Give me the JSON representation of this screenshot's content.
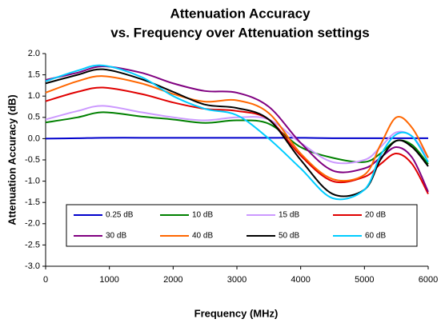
{
  "chart_data": {
    "type": "line",
    "title_lines": [
      "Attenuation Accuracy",
      "vs. Frequency over Attenuation settings"
    ],
    "x_label": "Frequency (MHz)",
    "y_label": "Attenuation Accuracy (dB)",
    "x": [
      0,
      500,
      900,
      1500,
      2000,
      2500,
      3000,
      3500,
      4000,
      4500,
      5000,
      5250,
      5500,
      5750,
      6000
    ],
    "series": [
      {
        "name": "0.25 dB",
        "color": "#0000cc",
        "values": [
          0.0,
          0.01,
          0.02,
          0.02,
          0.02,
          0.02,
          0.02,
          0.02,
          0.02,
          0.01,
          0.01,
          0.01,
          0.01,
          0.01,
          0.01
        ]
      },
      {
        "name": "10 dB",
        "color": "#008000",
        "values": [
          0.38,
          0.5,
          0.62,
          0.52,
          0.45,
          0.37,
          0.43,
          0.35,
          -0.2,
          -0.45,
          -0.55,
          -0.35,
          -0.05,
          -0.15,
          -0.6
        ]
      },
      {
        "name": "15 dB",
        "color": "#cc99ff",
        "values": [
          0.45,
          0.65,
          0.77,
          0.62,
          0.5,
          0.43,
          0.5,
          0.45,
          -0.1,
          -0.55,
          -0.5,
          -0.2,
          0.15,
          0.05,
          -0.45
        ]
      },
      {
        "name": "20 dB",
        "color": "#e00000",
        "values": [
          0.88,
          1.1,
          1.2,
          1.05,
          0.85,
          0.7,
          0.65,
          0.45,
          -0.4,
          -1.0,
          -0.9,
          -0.6,
          -0.35,
          -0.6,
          -1.3
        ]
      },
      {
        "name": "30 dB",
        "color": "#800080",
        "values": [
          1.38,
          1.55,
          1.7,
          1.55,
          1.3,
          1.12,
          1.08,
          0.75,
          -0.1,
          -0.75,
          -0.7,
          -0.45,
          -0.2,
          -0.45,
          -1.25
        ]
      },
      {
        "name": "40 dB",
        "color": "#ff6600",
        "values": [
          1.08,
          1.35,
          1.47,
          1.3,
          1.05,
          0.87,
          0.9,
          0.6,
          -0.35,
          -0.95,
          -0.85,
          -0.15,
          0.5,
          0.25,
          -0.45
        ]
      },
      {
        "name": "50 dB",
        "color": "#000000",
        "values": [
          1.3,
          1.5,
          1.63,
          1.4,
          1.1,
          0.8,
          0.72,
          0.45,
          -0.5,
          -1.3,
          -1.2,
          -0.5,
          -0.05,
          -0.2,
          -0.65
        ]
      },
      {
        "name": "60 dB",
        "color": "#00ccff",
        "values": [
          1.35,
          1.6,
          1.72,
          1.45,
          1.0,
          0.7,
          0.55,
          0.0,
          -0.7,
          -1.4,
          -1.2,
          -0.4,
          0.1,
          0.05,
          -0.55
        ]
      }
    ],
    "xlim": [
      0,
      6000
    ],
    "xticks": [
      0,
      1000,
      2000,
      3000,
      4000,
      5000,
      6000
    ],
    "ylim": [
      -3,
      2
    ],
    "yticks": [
      {
        "value": -3,
        "label": "-3.0"
      },
      -2.5,
      {
        "value": -2,
        "label": "-2.0"
      },
      -1.5,
      {
        "value": -1,
        "label": "-1.0"
      },
      -0.5,
      {
        "value": 0,
        "label": "0.0"
      },
      0.5,
      {
        "value": 1,
        "label": "1.0"
      },
      1.5,
      {
        "value": 2,
        "label": "2.0"
      }
    ],
    "grid": false
  }
}
